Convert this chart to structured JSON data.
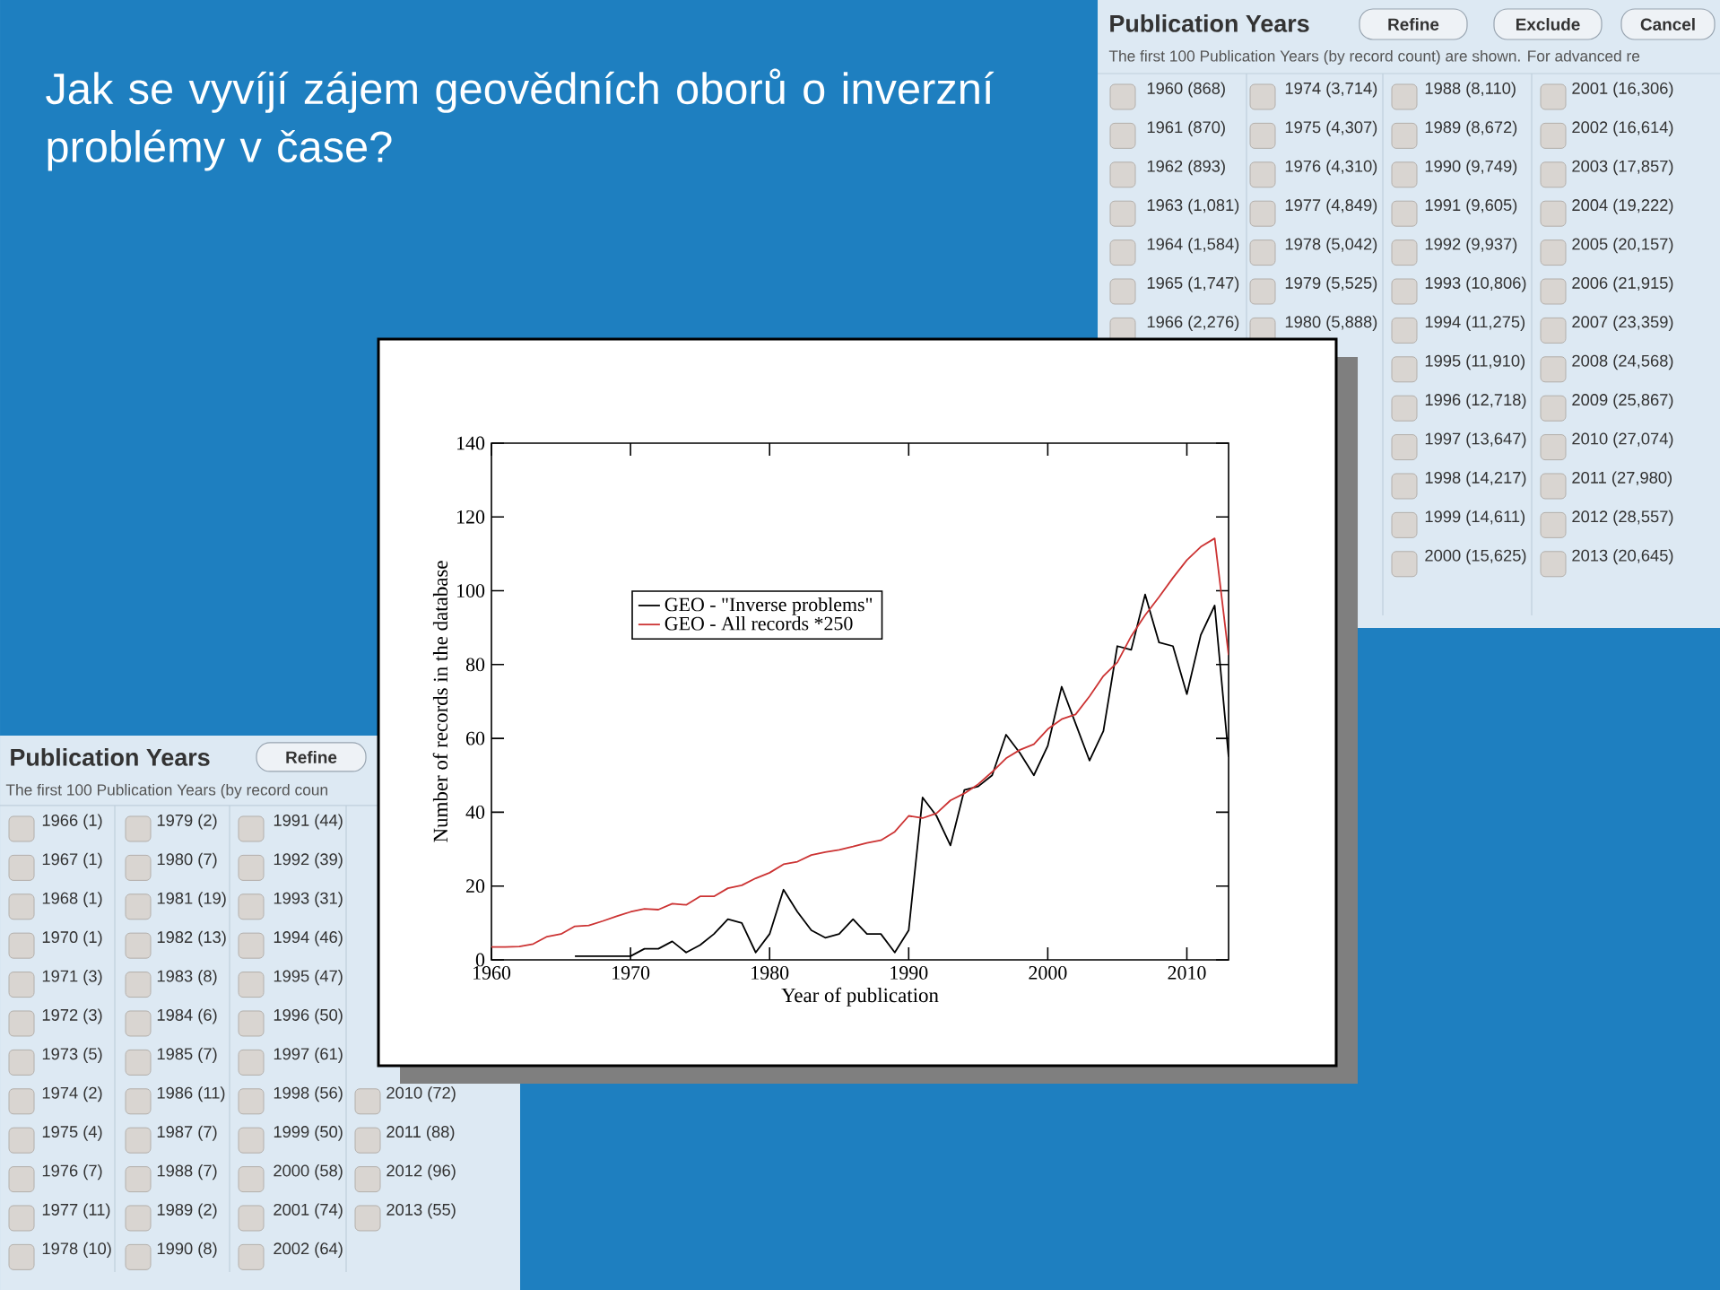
{
  "chart_data": [
    {
      "type": "line",
      "title": "Jak se vyvíjí zájem geovědních oborů o inverzní problémy v čase?",
      "xlabel": "Year of publication",
      "ylabel": "Number of records in the database",
      "xlim": [
        1960,
        2013
      ],
      "ylim": [
        0,
        140
      ],
      "xticks": [
        1960,
        1970,
        1980,
        1990,
        2000,
        2010
      ],
      "yticks": [
        0,
        20,
        40,
        60,
        80,
        100,
        120,
        140
      ],
      "legend": "top left",
      "series": [
        {
          "name": "GEO - \"Inverse problems\"",
          "color": "#000000",
          "x": [
            1966,
            1967,
            1968,
            1970,
            1971,
            1972,
            1973,
            1974,
            1975,
            1976,
            1977,
            1978,
            1979,
            1980,
            1981,
            1982,
            1983,
            1984,
            1985,
            1986,
            1987,
            1988,
            1989,
            1990,
            1991,
            1992,
            1993,
            1994,
            1995,
            1996,
            1997,
            1998,
            1999,
            2000,
            2001,
            2002,
            2003,
            2004,
            2005,
            2006,
            2007,
            2008,
            2009,
            2010,
            2011,
            2012,
            2013
          ],
          "values": [
            1,
            1,
            1,
            1,
            3,
            3,
            5,
            2,
            4,
            7,
            11,
            10,
            2,
            7,
            19,
            13,
            8,
            6,
            7,
            11,
            7,
            7,
            2,
            8,
            44,
            39,
            31,
            46,
            47,
            50,
            61,
            56,
            50,
            58,
            74,
            64,
            54,
            62,
            85,
            84,
            99,
            86,
            85,
            72,
            88,
            96,
            55
          ]
        },
        {
          "name": "GEO - All records *250",
          "color": "#cc3333",
          "x": [
            1960,
            1961,
            1962,
            1963,
            1964,
            1965,
            1966,
            1967,
            1968,
            1969,
            1970,
            1971,
            1972,
            1973,
            1974,
            1975,
            1976,
            1977,
            1978,
            1979,
            1980,
            1981,
            1982,
            1983,
            1984,
            1985,
            1986,
            1987,
            1988,
            1989,
            1990,
            1991,
            1992,
            1993,
            1994,
            1995,
            1996,
            1997,
            1998,
            1999,
            2000,
            2001,
            2002,
            2003,
            2004,
            2005,
            2006,
            2007,
            2008,
            2009,
            2010,
            2011,
            2012,
            2013
          ],
          "values": [
            3.5,
            3.5,
            3.6,
            4.3,
            6.3,
            7.0,
            9.1,
            9.3,
            10.5,
            11.8,
            13.0,
            13.8,
            13.6,
            15.2,
            14.9,
            17.2,
            17.2,
            19.4,
            20.2,
            22.1,
            23.6,
            25.9,
            26.6,
            28.4,
            29.2,
            29.8,
            30.7,
            31.7,
            32.4,
            34.7,
            39.0,
            38.4,
            39.7,
            43.2,
            45.1,
            47.6,
            50.9,
            54.6,
            56.9,
            58.4,
            62.5,
            65.2,
            66.5,
            71.4,
            76.9,
            80.6,
            87.7,
            93.4,
            98.3,
            103.5,
            108.3,
            111.9,
            114.2,
            82.6
          ]
        }
      ]
    },
    {
      "type": "other",
      "title": "Publication Years",
      "subtitle": "The first 100 Publication Years (by record count) are shown. For advanced re",
      "annotations": [
        "Refine",
        "Exclude",
        "Cancel"
      ],
      "categories": [
        "1960 (868)",
        "1961 (870)",
        "1962 (893)",
        "1963 (1,081)",
        "1964 (1,584)",
        "1965 (1,747)",
        "1966 (2,276)",
        null,
        null,
        null,
        null,
        null,
        null,
        null,
        "1974 (3,714)",
        "1975 (4,307)",
        "1976 (4,310)",
        "1977 (4,849)",
        "1978 (5,042)",
        "1979 (5,525)",
        "1980 (5,888)",
        null,
        null,
        null,
        null,
        null,
        null,
        null,
        "1988 (8,110)",
        "1989 (8,672)",
        "1990 (9,749)",
        "1991 (9,605)",
        "1992 (9,937)",
        "1993 (10,806)",
        "1994 (11,275)",
        "1995 (11,910)",
        "1996 (12,718)",
        "1997 (13,647)",
        "1998 (14,217)",
        "1999 (14,611)",
        "2000 (15,625)",
        "2001 (16,306)",
        "2002 (16,614)",
        "2003 (17,857)",
        "2004 (19,222)",
        "2005 (20,157)",
        "2006 (21,915)",
        "2007 (23,359)",
        "2008 (24,568)",
        "2009 (25,867)",
        "2010 (27,074)",
        "2011 (27,980)",
        "2012 (28,557)",
        "2013 (20,645)"
      ]
    },
    {
      "type": "other",
      "title": "Publication Years",
      "subtitle": "The first 100 Publication Years (by record coun",
      "annotations": [
        "Refine"
      ],
      "categories": [
        "1966 (1)",
        "1967 (1)",
        "1968 (1)",
        "1970 (1)",
        "1971 (3)",
        "1972 (3)",
        "1973 (5)",
        "1974 (2)",
        "1975 (4)",
        "1976 (7)",
        "1977 (11)",
        "1978 (10)",
        "1979 (2)",
        "1980 (7)",
        "1981 (19)",
        "1982 (13)",
        "1983 (8)",
        "1984 (6)",
        "1985 (7)",
        "1986 (11)",
        "1987 (7)",
        "1988 (7)",
        "1989 (2)",
        "1990 (8)",
        "1991 (44)",
        "1992 (39)",
        "1993 (31)",
        "1994 (46)",
        "1995 (47)",
        "1996 (50)",
        "1997 (61)",
        "1998 (56)",
        "1999 (50)",
        "2000 (58)",
        "2001 (74)",
        "2002 (64)",
        null,
        null,
        null,
        null,
        null,
        null,
        null,
        "2010 (72)",
        "2011 (88)",
        "2012 (96)",
        "2013 (55)"
      ]
    }
  ]
}
